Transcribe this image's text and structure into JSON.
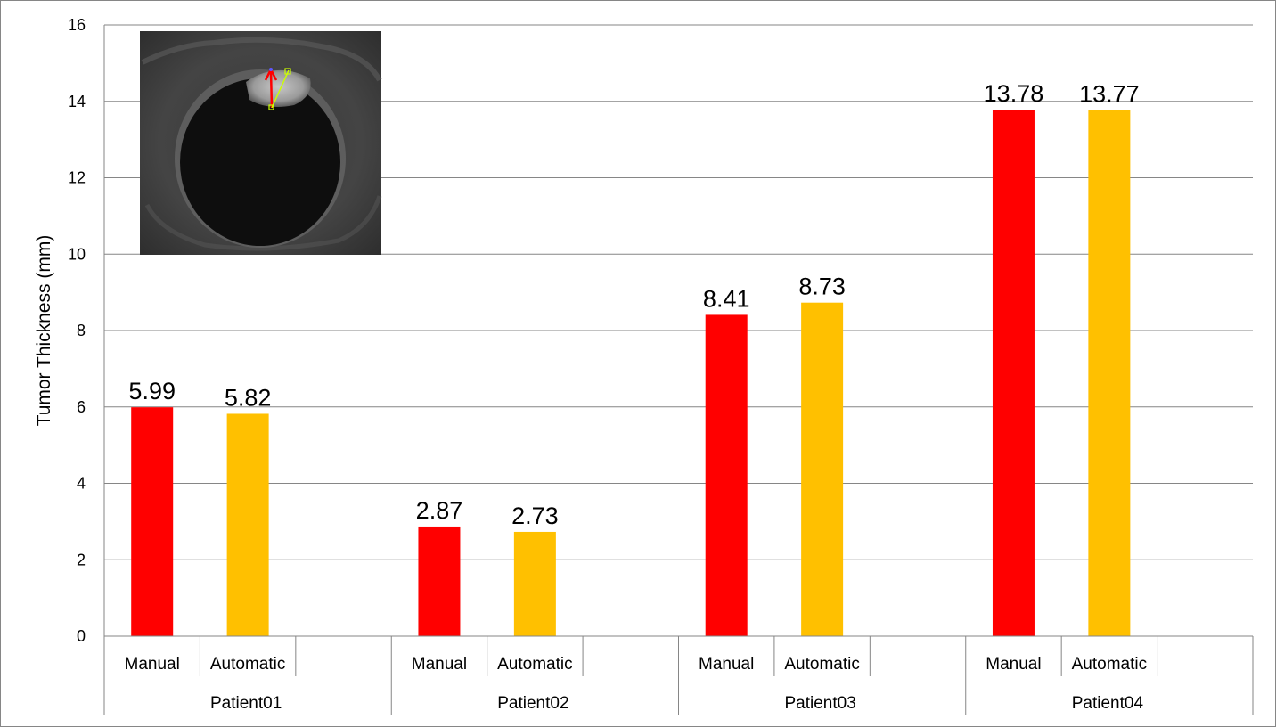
{
  "chart_data": {
    "type": "bar",
    "title": "",
    "xlabel": "",
    "ylabel": "Tumor Thickness (mm)",
    "ylim": [
      0,
      16
    ],
    "yticks": [
      0,
      2,
      4,
      6,
      8,
      10,
      12,
      14,
      16
    ],
    "grid": true,
    "legend": "none",
    "groups": [
      {
        "name": "Patient01",
        "bars": [
          {
            "label": "Manual",
            "value": 5.99,
            "value_label": "5.99"
          },
          {
            "label": "Automatic",
            "value": 5.82,
            "value_label": "5.82"
          }
        ]
      },
      {
        "name": "Patient02",
        "bars": [
          {
            "label": "Manual",
            "value": 2.87,
            "value_label": "2.87"
          },
          {
            "label": "Automatic",
            "value": 2.73,
            "value_label": "2.73"
          }
        ]
      },
      {
        "name": "Patient03",
        "bars": [
          {
            "label": "Manual",
            "value": 8.41,
            "value_label": "8.41"
          },
          {
            "label": "Automatic",
            "value": 8.73,
            "value_label": "8.73"
          }
        ]
      },
      {
        "name": "Patient04",
        "bars": [
          {
            "label": "Manual",
            "value": 13.78,
            "value_label": "13.78"
          },
          {
            "label": "Automatic",
            "value": 13.77,
            "value_label": "13.77"
          }
        ]
      }
    ],
    "colors": {
      "Manual": "#ff0000",
      "Automatic": "#ffc000",
      "grid": "#868686"
    }
  }
}
